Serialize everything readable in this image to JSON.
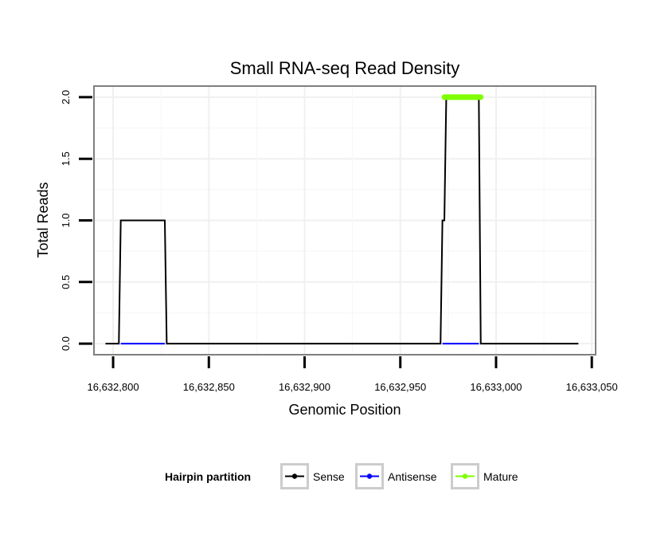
{
  "chart_data": {
    "type": "line",
    "title": "Small RNA-seq Read Density",
    "xlabel": "Genomic Position",
    "ylabel": "Total Reads",
    "xlim": [
      16632790,
      16633052
    ],
    "ylim": [
      -0.09,
      2.09
    ],
    "x_ticks": [
      16632800,
      16632850,
      16632900,
      16632950,
      16633000,
      16633050
    ],
    "x_tick_labels": [
      "16,632,800",
      "16,632,850",
      "16,632,900",
      "16,632,950",
      "16,633,000",
      "16,633,050"
    ],
    "y_ticks": [
      0,
      0.5,
      1,
      1.5,
      2
    ],
    "y_tick_labels": [
      "0.0",
      "0.5",
      "1.0",
      "1.5",
      "2.0"
    ],
    "grid": true,
    "legend": {
      "title": "Hairpin partition",
      "position": "bottom",
      "entries": [
        {
          "name": "Sense",
          "color": "#000000"
        },
        {
          "name": "Antisense",
          "color": "#0000ff"
        },
        {
          "name": "Mature",
          "color": "#7fff00"
        }
      ]
    },
    "series": [
      {
        "name": "Sense",
        "color": "#000000",
        "x": [
          16632796,
          16632803,
          16632804,
          16632827,
          16632828,
          16632971,
          16632972,
          16632973,
          16632974,
          16632991,
          16632992,
          16633043
        ],
        "y": [
          0,
          0,
          1,
          1,
          0,
          0,
          1,
          1,
          2,
          2,
          0,
          0
        ]
      },
      {
        "name": "Antisense",
        "color": "#0000ff",
        "x": [
          16632804,
          16632827
        ],
        "y": [
          0,
          0
        ]
      },
      {
        "name": "Antisense",
        "color": "#0000ff",
        "x": [
          16632972,
          16632991
        ],
        "y": [
          0,
          0
        ]
      },
      {
        "name": "Mature",
        "color": "#7fff00",
        "x": [
          16632973,
          16632992
        ],
        "y": [
          2,
          2
        ]
      }
    ]
  }
}
